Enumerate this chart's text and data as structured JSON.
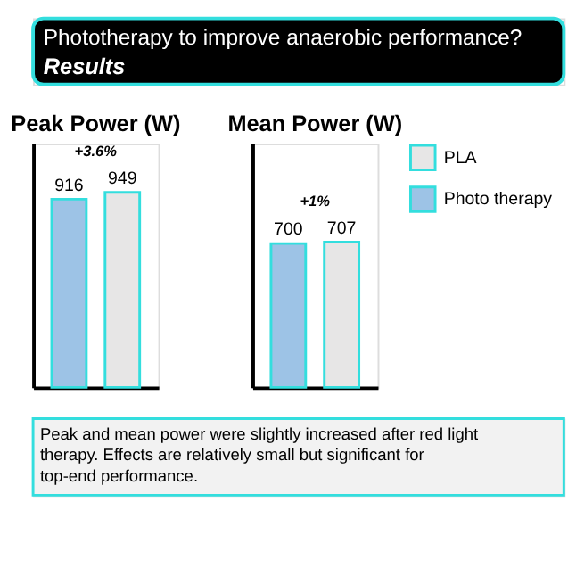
{
  "chart_data": [
    {
      "type": "other",
      "title": "Phototherapy to improve anaerobic performance?",
      "subtitle": "Results"
    },
    {
      "type": "bar",
      "title": "Peak Power (W)",
      "categories": [
        null
      ],
      "data_labels": true,
      "annotations": [
        "+3.6%"
      ],
      "legend": false,
      "series": [
        {
          "color": "#9dc3e6",
          "values": [
            916
          ]
        },
        {
          "color": "#e7e6e6",
          "values": [
            949
          ]
        }
      ]
    },
    {
      "type": "bar",
      "title": "Mean Power (W)",
      "categories": [
        null
      ],
      "data_labels": true,
      "annotations": [
        "+1%"
      ],
      "legend": "right",
      "series": [
        {
          "name": "Photo therapy",
          "color": "#9dc3e6",
          "values": [
            700
          ]
        },
        {
          "name": "PLA",
          "color": "#e7e6e6",
          "values": [
            707
          ]
        }
      ]
    },
    {
      "type": "other",
      "annotations": [
        "Peak and mean power were slightly increased after red light therapy. Effects are relatively small but significant for top-end performance."
      ]
    }
  ]
}
